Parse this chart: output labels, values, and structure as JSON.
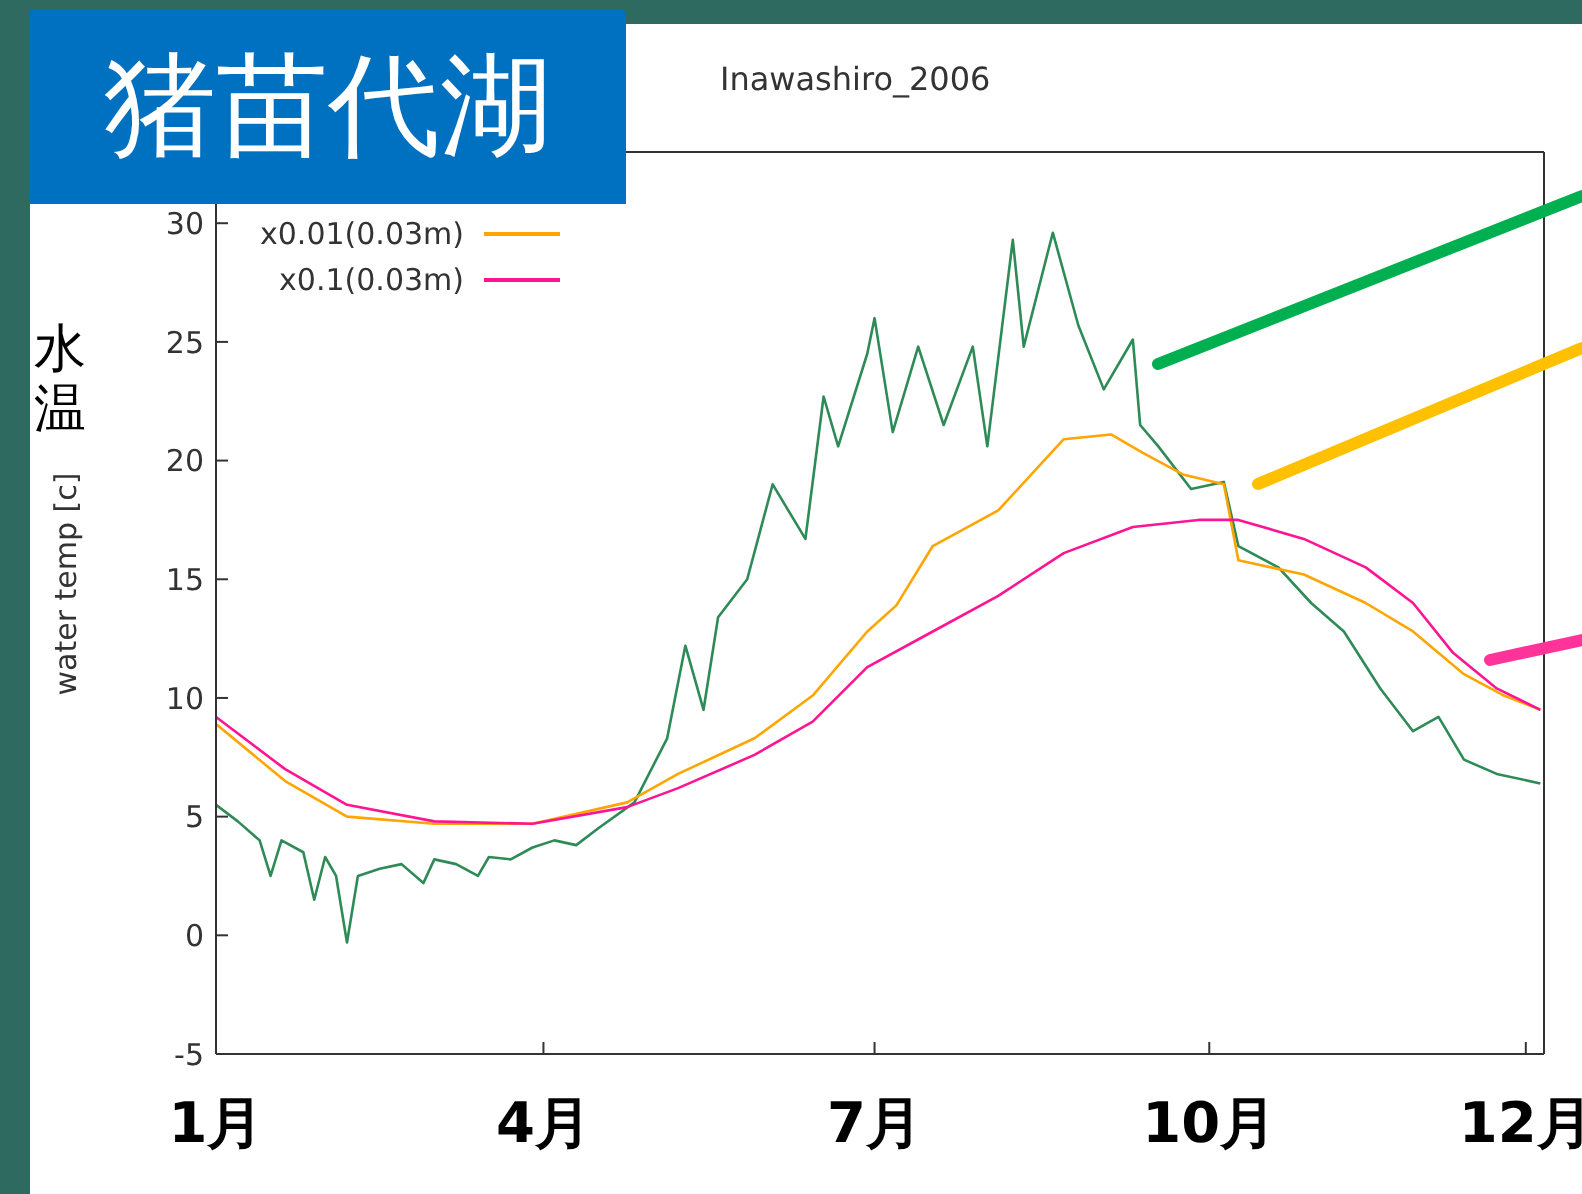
{
  "chart_data": {
    "type": "line",
    "title": "猪苗代湖",
    "subtitle": "Inawashiro_2006",
    "ylabel": "water temp [c]",
    "annotations": [
      "水温"
    ],
    "xlim": [
      "2006-01-01",
      "2007-01-01"
    ],
    "xticks": [
      {
        "value": "2006-01-01",
        "label": "1月"
      },
      {
        "value": "2006-04-01",
        "label": "4月"
      },
      {
        "value": "2006-07-01",
        "label": "7月"
      },
      {
        "value": "2006-10-01",
        "label": "10月"
      },
      {
        "value": "2006-12-27",
        "label": "12月"
      }
    ],
    "ylim": [
      -5,
      33
    ],
    "yticks": [
      -5,
      0,
      5,
      10,
      15,
      20,
      25,
      30
    ],
    "grid": false,
    "legend": "top left",
    "marker": "none",
    "line_style": "solid",
    "series": [
      {
        "color": "#2e8b57",
        "x": [
          "2006-01-01",
          "2006-01-07",
          "2006-01-13",
          "2006-01-16",
          "2006-01-19",
          "2006-01-25",
          "2006-01-28",
          "2006-01-31",
          "2006-02-03",
          "2006-02-06",
          "2006-02-09",
          "2006-02-15",
          "2006-02-21",
          "2006-02-27",
          "2006-03-02",
          "2006-03-08",
          "2006-03-14",
          "2006-03-17",
          "2006-03-23",
          "2006-03-29",
          "2006-04-04",
          "2006-04-10",
          "2006-04-16",
          "2006-04-26",
          "2006-05-05",
          "2006-05-10",
          "2006-05-15",
          "2006-05-19",
          "2006-05-27",
          "2006-06-03",
          "2006-06-12",
          "2006-06-17",
          "2006-06-21",
          "2006-06-29",
          "2006-07-01",
          "2006-07-06",
          "2006-07-13",
          "2006-07-20",
          "2006-07-28",
          "2006-08-01",
          "2006-08-08",
          "2006-08-11",
          "2006-08-19",
          "2006-08-26",
          "2006-09-02",
          "2006-09-10",
          "2006-09-12",
          "2006-09-17",
          "2006-09-26",
          "2006-10-05",
          "2006-10-09",
          "2006-10-20",
          "2006-10-29",
          "2006-11-07",
          "2006-11-17",
          "2006-11-26",
          "2006-12-03",
          "2006-12-10",
          "2006-12-19",
          "2006-12-31"
        ],
        "values": [
          5.5,
          4.8,
          4.0,
          2.5,
          4.0,
          3.5,
          1.5,
          3.3,
          2.5,
          -0.3,
          2.5,
          2.8,
          3.0,
          2.2,
          3.2,
          3.0,
          2.5,
          3.3,
          3.2,
          3.7,
          4.0,
          3.8,
          4.5,
          5.6,
          8.3,
          12.2,
          9.5,
          13.4,
          15,
          19,
          16.7,
          22.7,
          20.6,
          24.5,
          26,
          21.2,
          24.8,
          21.5,
          24.8,
          20.6,
          29.3,
          24.8,
          29.6,
          25.7,
          23,
          25.1,
          21.5,
          20.6,
          18.8,
          19.1,
          16.4,
          15.5,
          14,
          12.8,
          10.4,
          8.6,
          9.2,
          7.4,
          6.8,
          6.4
        ]
      },
      {
        "name": "x0.01(0.03m)",
        "color": "#ffa500",
        "x": [
          "2006-01-01",
          "2006-01-20",
          "2006-02-06",
          "2006-03-02",
          "2006-03-29",
          "2006-04-24",
          "2006-05-08",
          "2006-05-29",
          "2006-06-14",
          "2006-06-29",
          "2006-07-07",
          "2006-07-17",
          "2006-08-04",
          "2006-08-22",
          "2006-09-04",
          "2006-09-13",
          "2006-09-24",
          "2006-10-05",
          "2006-10-09",
          "2006-10-27",
          "2006-11-13",
          "2006-11-26",
          "2006-12-10",
          "2006-12-21",
          "2006-12-31"
        ],
        "values": [
          8.9,
          6.5,
          5.0,
          4.7,
          4.7,
          5.6,
          6.8,
          8.3,
          10.1,
          12.8,
          13.9,
          16.4,
          17.9,
          20.9,
          21.1,
          20.3,
          19.4,
          19,
          15.8,
          15.2,
          14,
          12.8,
          11,
          10.1,
          9.5
        ]
      },
      {
        "name": "x0.1(0.03m)",
        "color": "#ff1493",
        "x": [
          "2006-01-01",
          "2006-01-20",
          "2006-02-06",
          "2006-03-02",
          "2006-03-29",
          "2006-04-24",
          "2006-05-08",
          "2006-05-29",
          "2006-06-14",
          "2006-06-29",
          "2006-07-17",
          "2006-08-04",
          "2006-08-22",
          "2006-09-10",
          "2006-09-28",
          "2006-10-09",
          "2006-10-27",
          "2006-11-13",
          "2006-11-26",
          "2006-12-07",
          "2006-12-19",
          "2006-12-31"
        ],
        "values": [
          9.2,
          7,
          5.5,
          4.8,
          4.7,
          5.4,
          6.2,
          7.6,
          9,
          11.3,
          12.8,
          14.3,
          16.1,
          17.2,
          17.5,
          17.5,
          16.7,
          15.5,
          14,
          11.9,
          10.4,
          9.5
        ]
      }
    ]
  }
}
